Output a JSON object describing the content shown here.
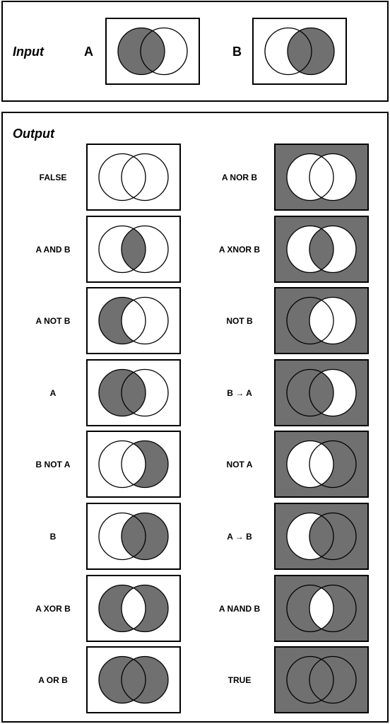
{
  "input": {
    "heading": "Input",
    "a_label": "A",
    "b_label": "B",
    "a_box": {
      "fill": "A",
      "background": "white"
    },
    "b_box": {
      "fill": "B",
      "background": "white"
    }
  },
  "output": {
    "heading": "Output",
    "left": [
      {
        "label": "FALSE",
        "fill": "none",
        "background": "white"
      },
      {
        "label": "A  AND  B",
        "fill": "intersect",
        "background": "white"
      },
      {
        "label": "A NOT B",
        "fill": "A_only",
        "background": "white"
      },
      {
        "label": "A",
        "fill": "A",
        "background": "white"
      },
      {
        "label": "B NOT A",
        "fill": "B_only",
        "background": "white"
      },
      {
        "label": "B",
        "fill": "B",
        "background": "white"
      },
      {
        "label": "A XOR B",
        "fill": "xor",
        "background": "white"
      },
      {
        "label": "A OR B",
        "fill": "union",
        "background": "white"
      }
    ],
    "right": [
      {
        "label": "A NOR B",
        "fill": "none",
        "background": "gray"
      },
      {
        "label": "A XNOR B",
        "fill": "intersect",
        "background": "gray"
      },
      {
        "label": "NOT B",
        "fill": "A_only",
        "background": "gray"
      },
      {
        "label": "B → A",
        "fill": "A",
        "background": "gray"
      },
      {
        "label": "NOT A",
        "fill": "B_only",
        "background": "gray"
      },
      {
        "label": "A → B",
        "fill": "B",
        "background": "gray"
      },
      {
        "label": "A NAND B",
        "fill": "xor",
        "background": "gray"
      },
      {
        "label": "TRUE",
        "fill": "union",
        "background": "gray"
      }
    ]
  },
  "colors": {
    "shade": "#707070",
    "ink": "#000000",
    "paper": "#ffffff"
  }
}
